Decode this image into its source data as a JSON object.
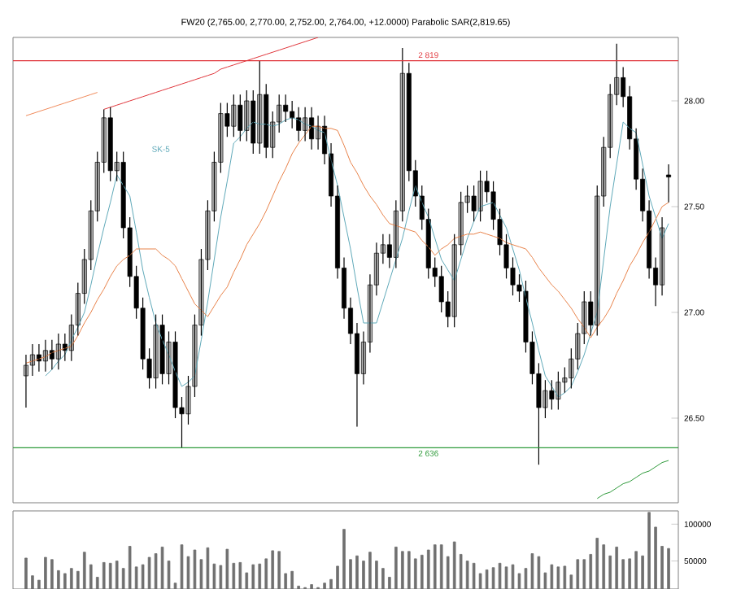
{
  "chart_data": [
    {
      "type": "candlestick",
      "title": "FW20 (2,765.00, 2,770.00, 2,752.00, 2,764.00, +12.0000) Parabolic SAR(2,819.65)",
      "categories": [
        null,
        null,
        null,
        null,
        null,
        null,
        null,
        null,
        null,
        null,
        null,
        null,
        null,
        null,
        null,
        null,
        null,
        null,
        null,
        null,
        null,
        null,
        null,
        null,
        null,
        null,
        null,
        null,
        null,
        null,
        null,
        null,
        null,
        null,
        null,
        null,
        null,
        null,
        null,
        null,
        null,
        null,
        null,
        null,
        null,
        null,
        null,
        null,
        null,
        null,
        null,
        null,
        null,
        null,
        null,
        null,
        null,
        null,
        null,
        null,
        null,
        null,
        null,
        null,
        null,
        null,
        null,
        null,
        null,
        null,
        null,
        null,
        null,
        null,
        null,
        null,
        null,
        null,
        null,
        null,
        null,
        null,
        null,
        null,
        null,
        null,
        null,
        null,
        null,
        null,
        null,
        null,
        null,
        null,
        null,
        null,
        null,
        null,
        null,
        null
      ],
      "ylim": [
        26.1,
        28.3
      ],
      "yticks": [
        {
          "value": 26.5,
          "label": "26.50"
        },
        {
          "value": 27.0,
          "label": "27.00"
        },
        {
          "value": 27.5,
          "label": "27.50"
        },
        {
          "value": 28.0,
          "label": "28.00"
        }
      ],
      "tick_labels": "y",
      "ref_lines": [
        {
          "axis": "y",
          "value": 28.19,
          "label": "2 819",
          "color": "#e0353b"
        },
        {
          "axis": "y",
          "value": 26.36,
          "label": "2 636",
          "color": "#2e9a3a"
        }
      ],
      "series": [
        {
          "type": "candlestick",
          "ohlc": [
            [
              26.7,
              26.8,
              26.55,
              26.75
            ],
            [
              26.75,
              26.85,
              26.7,
              26.8
            ],
            [
              26.8,
              26.85,
              26.72,
              26.77
            ],
            [
              26.77,
              26.87,
              26.72,
              26.82
            ],
            [
              26.82,
              26.87,
              26.73,
              26.78
            ],
            [
              26.78,
              26.9,
              26.73,
              26.85
            ],
            [
              26.85,
              26.9,
              26.77,
              26.82
            ],
            [
              26.82,
              26.99,
              26.77,
              26.94
            ],
            [
              26.94,
              27.14,
              26.89,
              27.09
            ],
            [
              27.09,
              27.3,
              27.04,
              27.25
            ],
            [
              27.25,
              27.53,
              27.2,
              27.48
            ],
            [
              27.48,
              27.76,
              27.43,
              27.71
            ],
            [
              27.71,
              27.96,
              27.66,
              27.92
            ],
            [
              27.92,
              27.97,
              27.62,
              27.67
            ],
            [
              27.67,
              27.76,
              27.62,
              27.71
            ],
            [
              27.71,
              27.76,
              27.35,
              27.4
            ],
            [
              27.4,
              27.45,
              27.12,
              27.17
            ],
            [
              27.17,
              27.22,
              26.97,
              27.02
            ],
            [
              27.02,
              27.07,
              26.73,
              26.78
            ],
            [
              26.78,
              26.83,
              26.64,
              26.69
            ],
            [
              26.69,
              26.99,
              26.64,
              26.94
            ],
            [
              26.94,
              26.99,
              26.66,
              26.71
            ],
            [
              26.71,
              26.91,
              26.66,
              26.86
            ],
            [
              26.86,
              26.91,
              26.5,
              26.55
            ],
            [
              26.55,
              26.6,
              26.36,
              26.52
            ],
            [
              26.52,
              26.7,
              26.47,
              26.65
            ],
            [
              26.65,
              26.99,
              26.6,
              26.94
            ],
            [
              26.94,
              27.3,
              26.89,
              27.25
            ],
            [
              27.25,
              27.53,
              27.2,
              27.48
            ],
            [
              27.48,
              27.76,
              27.43,
              27.71
            ],
            [
              27.71,
              27.99,
              27.66,
              27.94
            ],
            [
              27.94,
              27.99,
              27.83,
              27.88
            ],
            [
              27.88,
              28.03,
              27.83,
              27.98
            ],
            [
              27.98,
              28.03,
              27.81,
              27.86
            ],
            [
              27.86,
              28.05,
              27.81,
              28.0
            ],
            [
              28.0,
              28.05,
              27.75,
              27.8
            ],
            [
              27.8,
              28.19,
              27.75,
              28.03
            ],
            [
              28.03,
              28.08,
              27.73,
              27.78
            ],
            [
              27.78,
              27.95,
              27.73,
              27.9
            ],
            [
              27.9,
              28.03,
              27.85,
              27.98
            ],
            [
              27.98,
              28.03,
              27.9,
              27.95
            ],
            [
              27.95,
              28.0,
              27.87,
              27.92
            ],
            [
              27.92,
              27.97,
              27.81,
              27.86
            ],
            [
              27.86,
              27.97,
              27.81,
              27.92
            ],
            [
              27.92,
              27.97,
              27.77,
              27.82
            ],
            [
              27.82,
              27.93,
              27.77,
              27.88
            ],
            [
              27.88,
              27.93,
              27.7,
              27.75
            ],
            [
              27.75,
              27.8,
              27.5,
              27.55
            ],
            [
              27.55,
              27.6,
              27.16,
              27.21
            ],
            [
              27.21,
              27.26,
              26.97,
              27.02
            ],
            [
              27.02,
              27.07,
              26.85,
              26.9
            ],
            [
              26.9,
              26.95,
              26.46,
              26.71
            ],
            [
              26.71,
              26.91,
              26.66,
              26.86
            ],
            [
              26.86,
              27.18,
              26.81,
              27.13
            ],
            [
              27.13,
              27.33,
              27.08,
              27.28
            ],
            [
              27.28,
              27.37,
              27.23,
              27.32
            ],
            [
              27.32,
              27.37,
              27.21,
              27.26
            ],
            [
              27.26,
              27.53,
              27.21,
              27.48
            ],
            [
              27.48,
              28.25,
              27.43,
              28.13
            ],
            [
              28.13,
              28.18,
              27.62,
              27.67
            ],
            [
              27.67,
              27.72,
              27.5,
              27.55
            ],
            [
              27.55,
              27.6,
              27.39,
              27.44
            ],
            [
              27.44,
              27.49,
              27.16,
              27.21
            ],
            [
              27.21,
              27.26,
              27.12,
              27.17
            ],
            [
              27.17,
              27.22,
              27.0,
              27.05
            ],
            [
              27.05,
              27.1,
              26.93,
              26.98
            ],
            [
              26.98,
              27.37,
              26.93,
              27.32
            ],
            [
              27.32,
              27.57,
              27.27,
              27.52
            ],
            [
              27.52,
              27.6,
              27.47,
              27.55
            ],
            [
              27.55,
              27.6,
              27.43,
              27.48
            ],
            [
              27.48,
              27.67,
              27.43,
              27.62
            ],
            [
              27.62,
              27.67,
              27.52,
              27.57
            ],
            [
              27.57,
              27.62,
              27.39,
              27.44
            ],
            [
              27.44,
              27.49,
              27.27,
              27.32
            ],
            [
              27.32,
              27.37,
              27.16,
              27.21
            ],
            [
              27.21,
              27.26,
              27.08,
              27.13
            ],
            [
              27.13,
              27.18,
              27.05,
              27.1
            ],
            [
              27.1,
              27.15,
              26.81,
              26.86
            ],
            [
              26.86,
              26.91,
              26.66,
              26.71
            ],
            [
              26.71,
              26.76,
              26.28,
              26.55
            ],
            [
              26.55,
              26.68,
              26.5,
              26.63
            ],
            [
              26.63,
              26.68,
              26.54,
              26.59
            ],
            [
              26.59,
              26.72,
              26.54,
              26.67
            ],
            [
              26.67,
              26.74,
              26.62,
              26.69
            ],
            [
              26.69,
              26.83,
              26.64,
              26.78
            ],
            [
              26.78,
              26.95,
              26.73,
              26.9
            ],
            [
              26.9,
              27.1,
              26.85,
              27.05
            ],
            [
              27.05,
              27.1,
              26.89,
              26.94
            ],
            [
              26.94,
              27.6,
              26.89,
              27.55
            ],
            [
              27.55,
              27.83,
              27.5,
              27.78
            ],
            [
              27.78,
              28.08,
              27.73,
              28.03
            ],
            [
              28.03,
              28.27,
              27.98,
              28.11
            ],
            [
              28.11,
              28.16,
              27.97,
              28.02
            ],
            [
              28.02,
              28.07,
              27.77,
              27.82
            ],
            [
              27.82,
              27.87,
              27.58,
              27.63
            ],
            [
              27.63,
              27.68,
              27.43,
              27.48
            ],
            [
              27.48,
              27.53,
              27.16,
              27.21
            ],
            [
              27.21,
              27.26,
              27.03,
              27.13
            ],
            [
              27.13,
              27.45,
              27.08,
              27.4
            ],
            [
              27.65,
              27.7,
              27.52,
              27.64
            ]
          ]
        },
        {
          "type": "line",
          "name": "SK-5",
          "color": "#5fa9b9",
          "values": [
            null,
            null,
            null,
            26.7,
            26.73,
            26.77,
            26.8,
            26.87,
            26.93,
            27.0,
            27.13,
            27.27,
            27.4,
            27.52,
            27.65,
            27.6,
            27.55,
            27.38,
            27.2,
            27.07,
            26.95,
            26.87,
            26.8,
            26.72,
            26.65,
            26.67,
            26.7,
            26.87,
            27.05,
            27.25,
            27.45,
            27.62,
            27.8,
            27.83,
            27.87,
            27.9,
            27.89,
            27.89,
            27.88,
            27.89,
            27.91,
            27.92,
            27.91,
            27.89,
            27.88,
            27.86,
            27.85,
            27.72,
            27.6,
            27.45,
            27.3,
            27.12,
            26.95,
            26.95,
            26.95,
            27.05,
            27.15,
            27.25,
            27.35,
            27.48,
            27.6,
            27.52,
            27.45,
            27.35,
            27.25,
            27.2,
            27.15,
            27.25,
            27.35,
            27.43,
            27.5,
            27.51,
            27.52,
            27.46,
            27.4,
            27.3,
            27.2,
            27.07,
            26.95,
            26.82,
            26.7,
            26.65,
            26.6,
            26.62,
            26.65,
            26.72,
            26.8,
            26.9,
            27.0,
            27.25,
            27.5,
            27.7,
            27.9,
            27.87,
            27.85,
            27.7,
            27.55,
            27.45,
            27.35,
            27.42
          ]
        },
        {
          "type": "line",
          "color": "#e8834a",
          "values": [
            26.76,
            26.77,
            26.78,
            26.79,
            26.81,
            26.82,
            26.83,
            26.84,
            26.89,
            26.95,
            27.0,
            27.06,
            27.11,
            27.17,
            27.22,
            27.25,
            27.27,
            27.3,
            27.3,
            27.3,
            27.3,
            27.27,
            27.25,
            27.22,
            27.16,
            27.1,
            27.04,
            27.01,
            26.98,
            27.03,
            27.08,
            27.12,
            27.19,
            27.25,
            27.32,
            27.37,
            27.42,
            27.48,
            27.55,
            27.62,
            27.68,
            27.75,
            27.8,
            27.84,
            27.88,
            27.88,
            27.87,
            27.87,
            27.86,
            27.79,
            27.71,
            27.66,
            27.6,
            27.55,
            27.51,
            27.46,
            27.42,
            27.41,
            27.4,
            27.39,
            27.38,
            27.34,
            27.31,
            27.27,
            27.3,
            27.32,
            27.35,
            27.36,
            27.37,
            27.37,
            27.38,
            27.37,
            27.36,
            27.35,
            27.33,
            27.32,
            27.31,
            27.3,
            27.26,
            27.21,
            27.17,
            27.13,
            27.1,
            27.06,
            27.02,
            26.97,
            26.93,
            26.88,
            26.93,
            26.97,
            27.02,
            27.09,
            27.15,
            27.22,
            27.27,
            27.33,
            27.38,
            27.44,
            27.5,
            27.52
          ]
        },
        {
          "type": "line",
          "color": "#f08a5a",
          "values": [
            27.93,
            27.94,
            27.95,
            27.96,
            27.97,
            27.98,
            27.99,
            28.0,
            28.01,
            28.02,
            28.03,
            28.04,
            null,
            null,
            null,
            null,
            null,
            null,
            null,
            null,
            null,
            null,
            null,
            null,
            null,
            null,
            null,
            null,
            null,
            null,
            null,
            null,
            null,
            null,
            null,
            null,
            null,
            null,
            null,
            null,
            null,
            null,
            null,
            null,
            null,
            null,
            null,
            null,
            null,
            null,
            null,
            null,
            null,
            null,
            null,
            null,
            null,
            null,
            null,
            null,
            null,
            null,
            null,
            null,
            null,
            null,
            null,
            null,
            null,
            null,
            null,
            null,
            null,
            null,
            null,
            null,
            null,
            null,
            null,
            null,
            null,
            null,
            null,
            null,
            null,
            null,
            null,
            null,
            null,
            null,
            null,
            null,
            null,
            null,
            null,
            null,
            null,
            null,
            null,
            null
          ]
        },
        {
          "type": "line",
          "color": "#e0353b",
          "values": [
            null,
            null,
            null,
            null,
            null,
            null,
            null,
            null,
            null,
            null,
            null,
            null,
            27.96,
            27.97,
            27.98,
            27.99,
            28.0,
            28.01,
            28.02,
            28.03,
            28.04,
            28.05,
            28.06,
            28.07,
            28.08,
            28.09,
            28.1,
            28.11,
            28.12,
            28.13,
            28.15,
            28.16,
            28.17,
            28.18,
            28.19,
            28.2,
            28.21,
            28.22,
            28.23,
            28.24,
            28.25,
            28.26,
            28.27,
            28.28,
            28.29,
            28.3,
            null,
            null,
            null,
            null,
            null,
            null,
            null,
            null,
            null,
            null,
            null,
            null,
            null,
            null,
            null,
            null,
            null,
            null,
            null,
            null,
            null,
            null,
            null,
            null,
            null,
            null,
            null,
            null,
            null,
            null,
            null,
            null,
            null,
            null,
            null,
            null,
            null,
            null,
            null,
            null,
            null,
            null,
            null,
            null,
            null,
            null,
            null,
            null,
            null,
            null,
            null,
            null,
            null,
            null
          ]
        },
        {
          "type": "line",
          "color": "#2e9a3a",
          "values": [
            null,
            null,
            null,
            null,
            null,
            null,
            null,
            null,
            null,
            null,
            null,
            null,
            null,
            null,
            null,
            null,
            null,
            null,
            null,
            null,
            null,
            null,
            null,
            null,
            null,
            null,
            null,
            null,
            null,
            null,
            null,
            null,
            null,
            null,
            null,
            null,
            null,
            null,
            null,
            null,
            null,
            null,
            null,
            null,
            null,
            null,
            null,
            null,
            null,
            null,
            null,
            null,
            null,
            null,
            null,
            null,
            null,
            null,
            null,
            null,
            null,
            null,
            null,
            null,
            null,
            null,
            null,
            null,
            null,
            null,
            null,
            null,
            null,
            null,
            null,
            null,
            null,
            null,
            null,
            null,
            null,
            null,
            null,
            null,
            null,
            null,
            null,
            null,
            26.12,
            26.14,
            26.15,
            26.17,
            26.19,
            26.2,
            26.22,
            26.24,
            26.25,
            26.27,
            26.29,
            26.3
          ]
        }
      ]
    },
    {
      "type": "bar",
      "color": "#707070",
      "ylim": [
        12000,
        118000
      ],
      "yticks": [
        50000,
        100000
      ],
      "tick_labels": "y",
      "categories": [
        null,
        null,
        null,
        null,
        null,
        null,
        null,
        null,
        null,
        null,
        null,
        null,
        null,
        null,
        null,
        null,
        null,
        null,
        null,
        null,
        null,
        null,
        null,
        null,
        null,
        null,
        null,
        null,
        null,
        null,
        null,
        null,
        null,
        null,
        null,
        null,
        null,
        null,
        null,
        null,
        null,
        null,
        null,
        null,
        null,
        null,
        null,
        null,
        null,
        null,
        null,
        null,
        null,
        null,
        null,
        null,
        null,
        null,
        null,
        null,
        null,
        null,
        null,
        null,
        null,
        null,
        null,
        null,
        null,
        null,
        null,
        null,
        null,
        null,
        null,
        null,
        null,
        null,
        null,
        null,
        null,
        null,
        null,
        null,
        null,
        null,
        null,
        null,
        null,
        null,
        null,
        null,
        null,
        null,
        null,
        null,
        null,
        null,
        null,
        null
      ],
      "values": [
        54000,
        30000,
        24000,
        55000,
        52000,
        37000,
        33000,
        40000,
        36000,
        62000,
        45000,
        28000,
        48000,
        47000,
        50000,
        40000,
        70000,
        42000,
        45000,
        55000,
        60000,
        69000,
        50000,
        20000,
        72000,
        56000,
        65000,
        52000,
        68000,
        46000,
        44000,
        66000,
        47000,
        48000,
        34000,
        45000,
        46000,
        53000,
        64000,
        63000,
        33000,
        36000,
        16000,
        14000,
        18000,
        14000,
        20000,
        25000,
        43000,
        93000,
        52000,
        57000,
        50000,
        62000,
        50000,
        40000,
        28000,
        69000,
        63000,
        63000,
        53000,
        58000,
        65000,
        72000,
        72000,
        56000,
        76000,
        59000,
        50000,
        47000,
        33000,
        38000,
        41000,
        47000,
        42000,
        45000,
        33000,
        40000,
        60000,
        56000,
        34000,
        45000,
        42000,
        43000,
        31000,
        52000,
        52000,
        59000,
        81000,
        72000,
        57000,
        69000,
        52000,
        53000,
        63000,
        57000,
        116000,
        96000,
        70000,
        67000
      ]
    }
  ]
}
